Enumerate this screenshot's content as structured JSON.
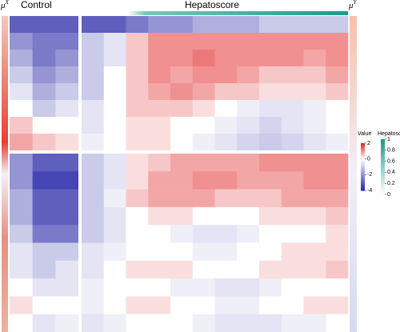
{
  "chart_data": {
    "type": "heatmap",
    "labels": {
      "mu_x": {
        "base": "μ",
        "sup": "X"
      },
      "mu_y": {
        "base": "μ",
        "sup": "Y"
      },
      "control": "Control",
      "hepatoscore": "Hepatoscore"
    },
    "values": [
      [
        -3,
        -3,
        -3,
        -3,
        -3,
        -2.5,
        -2,
        -2,
        -1.5,
        -1.5,
        -1.5,
        -1,
        -1,
        -1,
        -1
      ],
      [
        -2,
        -2.5,
        -2.5,
        -1,
        -0.5,
        0.5,
        1,
        1,
        1,
        1,
        1,
        1,
        1,
        1,
        1
      ],
      [
        -1.5,
        -2.5,
        -2,
        -1,
        -0.5,
        0.5,
        1,
        1,
        1.2,
        1,
        1,
        1,
        1,
        0.8,
        1
      ],
      [
        -1,
        -2,
        -1.5,
        -1,
        0,
        0.5,
        1,
        0.8,
        1,
        1,
        0.8,
        0.5,
        0.5,
        0.5,
        0.8
      ],
      [
        -0.5,
        -1.5,
        -1,
        -1,
        0,
        0.5,
        0.8,
        1,
        0.8,
        0.5,
        0.5,
        0.3,
        0.3,
        0.3,
        0.5
      ],
      [
        0,
        -1,
        -0.5,
        -0.5,
        0,
        0.5,
        0.5,
        0.5,
        0.3,
        0,
        -0.3,
        -0.5,
        -0.5,
        -0.3,
        0
      ],
      [
        0.5,
        0,
        0,
        -0.5,
        0,
        0.3,
        0.3,
        0,
        0,
        -0.3,
        -0.5,
        -0.8,
        -0.5,
        -0.3,
        0
      ],
      [
        0.8,
        0.5,
        0.3,
        -0.3,
        0,
        0.3,
        0.3,
        0,
        -0.3,
        -0.5,
        -0.8,
        -1,
        -0.8,
        -0.5,
        -0.3
      ],
      [
        -2,
        -3,
        -3,
        -1,
        -0.5,
        0.3,
        0.5,
        0.8,
        0.8,
        0.8,
        0.8,
        1,
        1,
        1,
        1
      ],
      [
        -2,
        -3.5,
        -3.5,
        -1,
        -0.5,
        0.3,
        0.8,
        0.8,
        1,
        1,
        0.8,
        0.8,
        0.8,
        1,
        1
      ],
      [
        -1.5,
        -3,
        -3,
        -1,
        -0.3,
        0.5,
        0.8,
        0.8,
        0.8,
        0.5,
        0.5,
        0.5,
        0.8,
        0.8,
        0.8
      ],
      [
        -1.5,
        -3,
        -3,
        -1,
        -0.5,
        0,
        0.3,
        0.3,
        0,
        0,
        0,
        0.3,
        0.3,
        0.3,
        0.5
      ],
      [
        -1,
        -2.5,
        -2.5,
        -1,
        -0.5,
        0,
        0,
        -0.3,
        -0.5,
        -0.5,
        -0.3,
        0,
        0,
        0,
        0.3
      ],
      [
        -0.5,
        -1,
        -1,
        -0.5,
        -0.3,
        0,
        0,
        0,
        -0.3,
        -0.3,
        0,
        0,
        0.3,
        0.3,
        0.3
      ],
      [
        -0.5,
        -1,
        -0.5,
        -0.5,
        0,
        0.3,
        0.3,
        0.3,
        0,
        0,
        0,
        0.3,
        0.3,
        0.3,
        0.5
      ],
      [
        0,
        -0.5,
        -0.5,
        -0.3,
        0,
        0,
        0,
        -0.3,
        -0.3,
        -0.5,
        -0.5,
        -0.3,
        0,
        0,
        0
      ],
      [
        0.3,
        0,
        0,
        -0.3,
        0,
        0.3,
        0.3,
        0,
        0,
        -0.3,
        -0.3,
        0,
        0,
        0.3,
        0.3
      ],
      [
        0,
        -0.5,
        -0.3,
        -0.5,
        -0.3,
        0,
        0,
        0,
        -0.3,
        -0.5,
        -0.5,
        -0.5,
        -0.3,
        -0.3,
        0
      ]
    ],
    "value_legend": {
      "title": "Value",
      "ylim": [
        -4.5,
        2.5
      ],
      "yticks": [
        2,
        0,
        -2,
        -4
      ],
      "low_color": "#2a2aa8",
      "high_color": "#e02020"
    },
    "hepatoscore_legend": {
      "title": "Hepatoscore",
      "ylim": [
        0,
        1
      ],
      "yticks": [
        1,
        0.8,
        0.6,
        0.4,
        0.2,
        0
      ],
      "low_color": "#ffffff",
      "high_color": "#1a9a8a"
    }
  }
}
